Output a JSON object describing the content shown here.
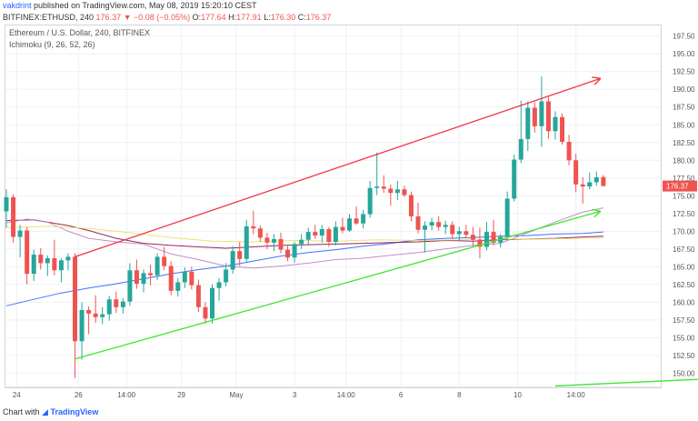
{
  "header": {
    "user": "vakdrint",
    "published_text": "published on TradingView.com, May 08, 2019 15:20:10 CEST"
  },
  "symbol_bar": {
    "symbol": "BITFINEX:ETHUSD, 240",
    "last": "176.37",
    "change_arrow": "▼",
    "change": "−0.08 (−0.05%)",
    "o_label": "O:",
    "o": "177.64",
    "h_label": "H:",
    "h": "177.91",
    "l_label": "L:",
    "l": "176.30",
    "c_label": "C:",
    "c": "176.37"
  },
  "legend": {
    "title": "Ethereum / U.S. Dollar, 240, BITFINEX",
    "indicator": "Ichimoku (9, 26, 52, 26)"
  },
  "price_axis": {
    "ticks": [
      "197.50",
      "195.00",
      "192.50",
      "190.00",
      "187.50",
      "185.00",
      "182.50",
      "180.00",
      "177.50",
      "175.00",
      "172.50",
      "170.00",
      "167.50",
      "165.00",
      "162.50",
      "160.00",
      "157.50",
      "155.00",
      "152.50",
      "150.00"
    ],
    "current_price": "176.37"
  },
  "time_axis": {
    "ticks": [
      "24",
      "26",
      "14:00",
      "29",
      "May",
      "3",
      "14:00",
      "6",
      "8",
      "10",
      "14:00"
    ]
  },
  "footer": {
    "prefix": "Chart with",
    "brand": "TradingView"
  },
  "colors": {
    "up": "#26a69a",
    "down": "#ef5350",
    "resistance": "#f23645",
    "support": "#3ee62f",
    "tenkan": "#2962ff",
    "kijun": "#880e4f",
    "span_a": "#bc7fc6",
    "span_b": "#e8e06a"
  },
  "chart_data": {
    "type": "candlestick",
    "ylim": [
      148,
      199
    ],
    "candles": [
      {
        "o": 172.8,
        "h": 175.9,
        "l": 170.5,
        "c": 174.8
      },
      {
        "o": 174.8,
        "h": 175.2,
        "l": 168.4,
        "c": 169.2
      },
      {
        "o": 169.2,
        "h": 170.9,
        "l": 166.3,
        "c": 170.1
      },
      {
        "o": 170.1,
        "h": 170.6,
        "l": 162.5,
        "c": 164.0
      },
      {
        "o": 164.0,
        "h": 167.4,
        "l": 163.0,
        "c": 166.7
      },
      {
        "o": 166.7,
        "h": 167.6,
        "l": 164.6,
        "c": 165.5
      },
      {
        "o": 165.5,
        "h": 166.6,
        "l": 163.7,
        "c": 166.2
      },
      {
        "o": 166.2,
        "h": 168.8,
        "l": 163.8,
        "c": 164.5
      },
      {
        "o": 164.5,
        "h": 166.2,
        "l": 162.8,
        "c": 165.9
      },
      {
        "o": 165.9,
        "h": 166.9,
        "l": 164.5,
        "c": 166.4
      },
      {
        "o": 166.4,
        "h": 166.9,
        "l": 149.3,
        "c": 154.5
      },
      {
        "o": 154.5,
        "h": 160.0,
        "l": 151.9,
        "c": 158.9
      },
      {
        "o": 158.9,
        "h": 159.4,
        "l": 155.5,
        "c": 158.4
      },
      {
        "o": 158.4,
        "h": 161.0,
        "l": 157.1,
        "c": 157.9
      },
      {
        "o": 157.9,
        "h": 159.3,
        "l": 156.9,
        "c": 158.3
      },
      {
        "o": 158.3,
        "h": 160.9,
        "l": 157.4,
        "c": 160.4
      },
      {
        "o": 160.4,
        "h": 161.5,
        "l": 158.5,
        "c": 159.3
      },
      {
        "o": 159.3,
        "h": 160.6,
        "l": 158.4,
        "c": 160.1
      },
      {
        "o": 160.1,
        "h": 165.5,
        "l": 159.5,
        "c": 164.5
      },
      {
        "o": 164.5,
        "h": 166.0,
        "l": 161.9,
        "c": 162.6
      },
      {
        "o": 162.6,
        "h": 164.6,
        "l": 161.4,
        "c": 164.1
      },
      {
        "o": 164.1,
        "h": 165.3,
        "l": 162.4,
        "c": 163.8
      },
      {
        "o": 163.8,
        "h": 166.9,
        "l": 163.1,
        "c": 166.4
      },
      {
        "o": 166.4,
        "h": 167.8,
        "l": 164.5,
        "c": 165.1
      },
      {
        "o": 165.1,
        "h": 165.8,
        "l": 161.0,
        "c": 161.6
      },
      {
        "o": 161.6,
        "h": 163.4,
        "l": 160.8,
        "c": 162.8
      },
      {
        "o": 162.8,
        "h": 164.9,
        "l": 162.0,
        "c": 164.3
      },
      {
        "o": 164.3,
        "h": 165.0,
        "l": 161.8,
        "c": 162.4
      },
      {
        "o": 162.4,
        "h": 163.2,
        "l": 158.6,
        "c": 159.3
      },
      {
        "o": 159.3,
        "h": 160.0,
        "l": 157.0,
        "c": 157.7
      },
      {
        "o": 157.7,
        "h": 162.5,
        "l": 157.0,
        "c": 162.0
      },
      {
        "o": 162.0,
        "h": 163.4,
        "l": 160.2,
        "c": 162.8
      },
      {
        "o": 162.8,
        "h": 165.5,
        "l": 162.2,
        "c": 164.6
      },
      {
        "o": 164.6,
        "h": 167.9,
        "l": 164.0,
        "c": 167.2
      },
      {
        "o": 167.2,
        "h": 168.5,
        "l": 165.1,
        "c": 166.1
      },
      {
        "o": 166.1,
        "h": 171.6,
        "l": 165.7,
        "c": 170.7
      },
      {
        "o": 170.7,
        "h": 172.9,
        "l": 169.6,
        "c": 170.4
      },
      {
        "o": 170.4,
        "h": 170.8,
        "l": 168.5,
        "c": 169.1
      },
      {
        "o": 169.1,
        "h": 169.8,
        "l": 167.5,
        "c": 168.4
      },
      {
        "o": 168.4,
        "h": 169.6,
        "l": 167.2,
        "c": 168.9
      },
      {
        "o": 168.9,
        "h": 169.8,
        "l": 166.9,
        "c": 167.4
      },
      {
        "o": 167.4,
        "h": 168.1,
        "l": 165.8,
        "c": 166.3
      },
      {
        "o": 166.3,
        "h": 168.5,
        "l": 165.6,
        "c": 168.2
      },
      {
        "o": 168.2,
        "h": 169.6,
        "l": 167.5,
        "c": 168.8
      },
      {
        "o": 168.8,
        "h": 170.5,
        "l": 168.1,
        "c": 169.9
      },
      {
        "o": 169.9,
        "h": 170.9,
        "l": 168.9,
        "c": 169.4
      },
      {
        "o": 169.4,
        "h": 170.9,
        "l": 168.4,
        "c": 170.3
      },
      {
        "o": 170.3,
        "h": 170.6,
        "l": 167.8,
        "c": 168.5
      },
      {
        "o": 168.5,
        "h": 171.4,
        "l": 168.0,
        "c": 170.6
      },
      {
        "o": 170.6,
        "h": 171.9,
        "l": 169.7,
        "c": 170.1
      },
      {
        "o": 170.1,
        "h": 172.4,
        "l": 169.9,
        "c": 171.8
      },
      {
        "o": 171.8,
        "h": 173.5,
        "l": 170.9,
        "c": 171.1
      },
      {
        "o": 171.1,
        "h": 173.0,
        "l": 170.4,
        "c": 172.4
      },
      {
        "o": 172.4,
        "h": 177.1,
        "l": 171.9,
        "c": 176.1
      },
      {
        "o": 176.1,
        "h": 181.1,
        "l": 175.1,
        "c": 176.3
      },
      {
        "o": 176.3,
        "h": 177.9,
        "l": 175.4,
        "c": 176.0
      },
      {
        "o": 176.0,
        "h": 176.6,
        "l": 173.6,
        "c": 175.4
      },
      {
        "o": 175.4,
        "h": 177.1,
        "l": 174.4,
        "c": 175.9
      },
      {
        "o": 175.9,
        "h": 176.4,
        "l": 174.8,
        "c": 175.1
      },
      {
        "o": 175.1,
        "h": 175.6,
        "l": 171.4,
        "c": 172.1
      },
      {
        "o": 172.1,
        "h": 174.0,
        "l": 169.7,
        "c": 170.2
      },
      {
        "o": 170.2,
        "h": 171.4,
        "l": 167.0,
        "c": 170.8
      },
      {
        "o": 170.8,
        "h": 171.9,
        "l": 170.1,
        "c": 171.3
      },
      {
        "o": 171.3,
        "h": 172.1,
        "l": 170.1,
        "c": 170.6
      },
      {
        "o": 170.6,
        "h": 171.5,
        "l": 169.6,
        "c": 170.9
      },
      {
        "o": 170.9,
        "h": 171.4,
        "l": 168.9,
        "c": 169.6
      },
      {
        "o": 169.6,
        "h": 170.6,
        "l": 168.6,
        "c": 170.0
      },
      {
        "o": 170.0,
        "h": 170.9,
        "l": 169.0,
        "c": 169.5
      },
      {
        "o": 169.5,
        "h": 170.6,
        "l": 167.9,
        "c": 168.8
      },
      {
        "o": 168.8,
        "h": 170.5,
        "l": 166.2,
        "c": 167.8
      },
      {
        "o": 167.8,
        "h": 171.3,
        "l": 167.3,
        "c": 169.9
      },
      {
        "o": 169.9,
        "h": 171.6,
        "l": 168.0,
        "c": 168.4
      },
      {
        "o": 168.4,
        "h": 169.6,
        "l": 167.7,
        "c": 169.2
      },
      {
        "o": 169.2,
        "h": 175.6,
        "l": 168.9,
        "c": 174.6
      },
      {
        "o": 174.6,
        "h": 180.8,
        "l": 174.2,
        "c": 180.1
      },
      {
        "o": 180.1,
        "h": 188.4,
        "l": 179.6,
        "c": 183.0
      },
      {
        "o": 183.0,
        "h": 188.3,
        "l": 181.3,
        "c": 187.4
      },
      {
        "o": 187.4,
        "h": 188.2,
        "l": 183.9,
        "c": 184.8
      },
      {
        "o": 184.8,
        "h": 191.8,
        "l": 181.9,
        "c": 188.3
      },
      {
        "o": 188.3,
        "h": 188.9,
        "l": 183.0,
        "c": 184.1
      },
      {
        "o": 184.1,
        "h": 186.9,
        "l": 182.9,
        "c": 186.1
      },
      {
        "o": 186.1,
        "h": 186.6,
        "l": 182.2,
        "c": 182.6
      },
      {
        "o": 182.6,
        "h": 183.6,
        "l": 179.3,
        "c": 180.0
      },
      {
        "o": 180.0,
        "h": 180.9,
        "l": 175.5,
        "c": 176.6
      },
      {
        "o": 176.6,
        "h": 177.6,
        "l": 173.9,
        "c": 176.3
      },
      {
        "o": 176.3,
        "h": 178.3,
        "l": 175.9,
        "c": 176.9
      },
      {
        "o": 176.9,
        "h": 178.4,
        "l": 176.4,
        "c": 177.6
      },
      {
        "o": 177.64,
        "h": 177.91,
        "l": 176.3,
        "c": 176.37
      }
    ],
    "trendlines": [
      {
        "name": "resistance",
        "x1": 10,
        "y1": 166.4,
        "x2": 86.5,
        "y2": 191.5,
        "arrow": true
      },
      {
        "name": "support",
        "x1": 10,
        "y1": 152.0,
        "x2": 86.5,
        "y2": 172.8,
        "arrow": true
      },
      {
        "name": "lower",
        "x1": 80,
        "y1": 148.2,
        "x2": 107,
        "y2": 149.4,
        "arrow": false
      }
    ],
    "indicators": {
      "tenkan": [
        [
          0,
          159.5
        ],
        [
          4,
          160.4
        ],
        [
          8,
          161.3
        ],
        [
          12,
          162.0
        ],
        [
          16,
          162.6
        ],
        [
          20,
          163.3
        ],
        [
          24,
          164.0
        ],
        [
          28,
          164.6
        ],
        [
          32,
          165.1
        ],
        [
          36,
          165.8
        ],
        [
          40,
          166.5
        ],
        [
          44,
          167.0
        ],
        [
          48,
          167.4
        ],
        [
          52,
          167.9
        ],
        [
          56,
          168.3
        ],
        [
          60,
          168.8
        ],
        [
          64,
          169.0
        ],
        [
          68,
          169.1
        ],
        [
          72,
          169.3
        ],
        [
          76,
          169.4
        ],
        [
          80,
          169.6
        ],
        [
          84,
          169.7
        ],
        [
          87,
          169.9
        ]
      ],
      "kijun": [
        [
          0,
          171.5
        ],
        [
          4,
          171.6
        ],
        [
          6,
          171.3
        ],
        [
          9,
          170.8
        ],
        [
          12,
          170.1
        ],
        [
          16,
          169.0
        ],
        [
          20,
          168.3
        ],
        [
          24,
          168.0
        ],
        [
          28,
          167.8
        ],
        [
          32,
          167.6
        ],
        [
          36,
          167.8
        ],
        [
          40,
          168.0
        ],
        [
          44,
          168.1
        ],
        [
          48,
          168.2
        ],
        [
          52,
          168.3
        ],
        [
          56,
          168.4
        ],
        [
          60,
          168.5
        ],
        [
          64,
          168.7
        ],
        [
          68,
          168.6
        ],
        [
          72,
          168.8
        ],
        [
          76,
          168.9
        ],
        [
          80,
          169.0
        ],
        [
          84,
          169.2
        ],
        [
          87,
          169.3
        ]
      ],
      "span_a": [
        [
          0,
          171.2
        ],
        [
          3,
          171.7
        ],
        [
          6,
          171.3
        ],
        [
          9,
          170.0
        ],
        [
          12,
          169.0
        ],
        [
          16,
          168.5
        ],
        [
          20,
          168.2
        ],
        [
          24,
          166.8
        ],
        [
          28,
          166.0
        ],
        [
          32,
          165.1
        ],
        [
          36,
          164.8
        ],
        [
          40,
          165.1
        ],
        [
          44,
          165.5
        ],
        [
          48,
          166.0
        ],
        [
          52,
          166.2
        ],
        [
          56,
          166.6
        ],
        [
          60,
          167.0
        ],
        [
          64,
          167.5
        ],
        [
          68,
          168.0
        ],
        [
          72,
          168.3
        ],
        [
          76,
          169.8
        ],
        [
          80,
          171.3
        ],
        [
          84,
          172.7
        ],
        [
          87,
          173.3
        ]
      ],
      "span_b": [
        [
          0,
          170.5
        ],
        [
          6,
          170.7
        ],
        [
          12,
          170.4
        ],
        [
          18,
          169.8
        ],
        [
          24,
          169.1
        ],
        [
          30,
          168.6
        ],
        [
          36,
          168.5
        ],
        [
          42,
          168.7
        ],
        [
          48,
          168.6
        ],
        [
          54,
          168.8
        ],
        [
          60,
          168.7
        ],
        [
          66,
          168.8
        ],
        [
          72,
          168.9
        ],
        [
          78,
          168.9
        ],
        [
          84,
          169.0
        ],
        [
          87,
          169.1
        ]
      ]
    },
    "x_ticks": [
      {
        "label": "24",
        "i": 1.5
      },
      {
        "label": "26",
        "i": 10.5
      },
      {
        "label": "14:00",
        "i": 17.5
      },
      {
        "label": "29",
        "i": 25.5
      },
      {
        "label": "May",
        "i": 33.5
      },
      {
        "label": "3",
        "i": 42
      },
      {
        "label": "14:00",
        "i": 49.5
      },
      {
        "label": "6",
        "i": 57.5
      },
      {
        "label": "8",
        "i": 66
      },
      {
        "label": "10",
        "i": 74.5
      },
      {
        "label": "14:00",
        "i": 83
      }
    ]
  }
}
